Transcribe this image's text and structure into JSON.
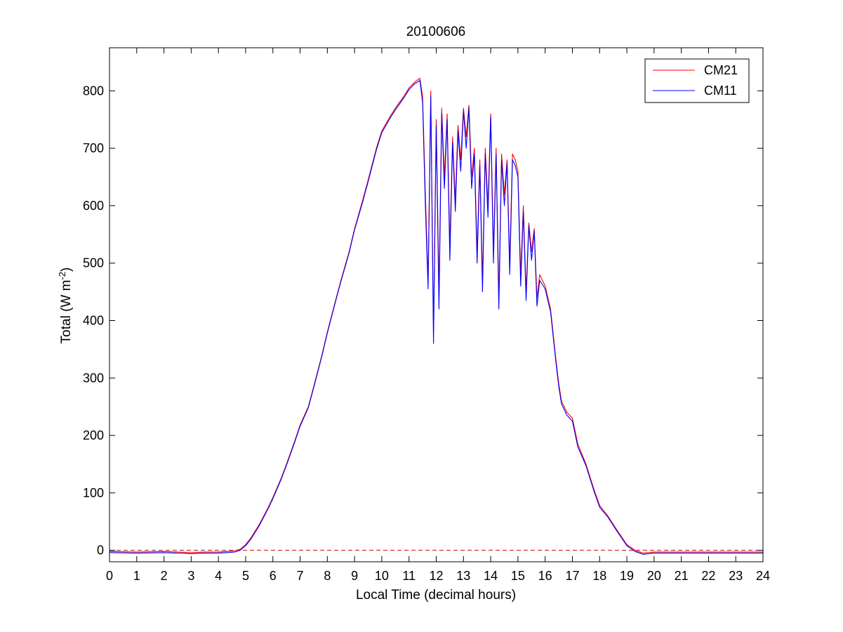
{
  "chart_data": {
    "type": "line",
    "title": "20100606",
    "xlabel": "Local Time (decimal hours)",
    "ylabel_main": "Total (W m",
    "ylabel_sup": "-2",
    "ylabel_close": ")",
    "xlim": [
      0,
      24
    ],
    "ylim": [
      -20,
      875
    ],
    "xticks": [
      "0",
      "1",
      "2",
      "3",
      "4",
      "5",
      "6",
      "7",
      "8",
      "9",
      "10",
      "11",
      "12",
      "13",
      "14",
      "15",
      "16",
      "17",
      "18",
      "19",
      "20",
      "21",
      "22",
      "23",
      "24"
    ],
    "yticks": [
      "0",
      "100",
      "200",
      "300",
      "400",
      "500",
      "600",
      "700",
      "800"
    ],
    "grid": false,
    "legend_position": "top-right",
    "reference_line": {
      "y": 0,
      "style": "dashed",
      "color": "#cc0000"
    },
    "series": [
      {
        "name": "CM21",
        "color": "#ff0000",
        "x": [
          0,
          1,
          2,
          2.5,
          3,
          3.5,
          4,
          4.3,
          4.6,
          4.8,
          5,
          5.2,
          5.5,
          5.8,
          6,
          6.3,
          6.5,
          6.8,
          7,
          7.3,
          7.5,
          7.8,
          8,
          8.3,
          8.5,
          8.8,
          9,
          9.3,
          9.5,
          9.8,
          10,
          10.3,
          10.5,
          10.8,
          11,
          11.2,
          11.4,
          11.5,
          11.6,
          11.7,
          11.8,
          11.9,
          12,
          12.1,
          12.2,
          12.3,
          12.4,
          12.5,
          12.6,
          12.7,
          12.8,
          12.9,
          13,
          13.1,
          13.2,
          13.3,
          13.4,
          13.5,
          13.6,
          13.7,
          13.8,
          13.9,
          14,
          14.1,
          14.2,
          14.3,
          14.4,
          14.5,
          14.6,
          14.7,
          14.8,
          14.9,
          15,
          15.1,
          15.2,
          15.3,
          15.4,
          15.5,
          15.6,
          15.7,
          15.8,
          16,
          16.2,
          16.4,
          16.5,
          16.6,
          16.8,
          17,
          17.2,
          17.5,
          17.8,
          18,
          18.3,
          18.6,
          19,
          19.3,
          19.6,
          19.8,
          20,
          21,
          22,
          23,
          24
        ],
        "y": [
          -2,
          -3,
          -2,
          -3,
          -4,
          -3,
          -3,
          -2,
          -1,
          2,
          10,
          22,
          45,
          72,
          92,
          125,
          150,
          190,
          218,
          250,
          285,
          340,
          380,
          435,
          470,
          520,
          560,
          610,
          645,
          700,
          730,
          755,
          770,
          790,
          805,
          815,
          822,
          790,
          620,
          470,
          800,
          380,
          750,
          450,
          770,
          650,
          760,
          530,
          720,
          610,
          740,
          680,
          770,
          720,
          775,
          650,
          700,
          520,
          680,
          470,
          700,
          600,
          760,
          520,
          700,
          440,
          690,
          620,
          680,
          500,
          690,
          680,
          660,
          480,
          600,
          450,
          570,
          520,
          560,
          440,
          480,
          460,
          420,
          330,
          290,
          260,
          240,
          230,
          185,
          150,
          105,
          78,
          60,
          38,
          10,
          0,
          -5,
          -4,
          -3,
          -3,
          -3,
          -3,
          -3
        ]
      },
      {
        "name": "CM11",
        "color": "#0000ff",
        "x": [
          0,
          1,
          2,
          2.5,
          3,
          3.5,
          4,
          4.3,
          4.6,
          4.8,
          5,
          5.2,
          5.5,
          5.8,
          6,
          6.3,
          6.5,
          6.8,
          7,
          7.3,
          7.5,
          7.8,
          8,
          8.3,
          8.5,
          8.8,
          9,
          9.3,
          9.5,
          9.8,
          10,
          10.3,
          10.5,
          10.8,
          11,
          11.2,
          11.4,
          11.5,
          11.6,
          11.7,
          11.8,
          11.9,
          12,
          12.1,
          12.2,
          12.3,
          12.4,
          12.5,
          12.6,
          12.7,
          12.8,
          12.9,
          13,
          13.1,
          13.2,
          13.3,
          13.4,
          13.5,
          13.6,
          13.7,
          13.8,
          13.9,
          14,
          14.1,
          14.2,
          14.3,
          14.4,
          14.5,
          14.6,
          14.7,
          14.8,
          14.9,
          15,
          15.1,
          15.2,
          15.3,
          15.4,
          15.5,
          15.6,
          15.7,
          15.8,
          16,
          16.2,
          16.4,
          16.5,
          16.6,
          16.8,
          17,
          17.2,
          17.5,
          17.8,
          18,
          18.3,
          18.6,
          19,
          19.3,
          19.6,
          19.8,
          20,
          21,
          22,
          23,
          24
        ],
        "y": [
          -4,
          -5,
          -4,
          -5,
          -6,
          -5,
          -5,
          -4,
          -3,
          0,
          8,
          20,
          43,
          70,
          90,
          123,
          148,
          188,
          216,
          248,
          283,
          338,
          378,
          433,
          468,
          518,
          558,
          607,
          642,
          697,
          727,
          752,
          767,
          787,
          802,
          812,
          818,
          780,
          600,
          455,
          790,
          360,
          740,
          420,
          760,
          630,
          750,
          505,
          710,
          590,
          730,
          660,
          765,
          700,
          770,
          630,
          690,
          500,
          670,
          450,
          690,
          580,
          755,
          500,
          690,
          420,
          680,
          600,
          675,
          480,
          680,
          670,
          650,
          460,
          590,
          435,
          565,
          505,
          555,
          425,
          470,
          455,
          415,
          325,
          285,
          255,
          235,
          225,
          180,
          147,
          102,
          75,
          58,
          36,
          8,
          -2,
          -7,
          -6,
          -5,
          -5,
          -5,
          -5,
          -5
        ]
      }
    ]
  }
}
